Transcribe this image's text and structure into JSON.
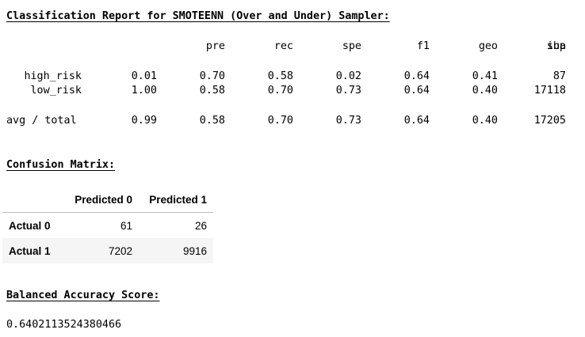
{
  "classification_report": {
    "title": "Classification Report for SMOTEENN (Over and Under) Sampler:",
    "columns": [
      "pre",
      "rec",
      "spe",
      "f1",
      "geo",
      "iba",
      "sup"
    ],
    "rows": [
      {
        "label": "high_risk",
        "values": [
          "0.01",
          "0.70",
          "0.58",
          "0.02",
          "0.64",
          "0.41",
          "87"
        ]
      },
      {
        "label": "low_risk",
        "values": [
          "1.00",
          "0.58",
          "0.70",
          "0.73",
          "0.64",
          "0.40",
          "17118"
        ]
      }
    ],
    "avg_total": {
      "label": "avg / total",
      "values": [
        "0.99",
        "0.58",
        "0.70",
        "0.73",
        "0.64",
        "0.40",
        "17205"
      ]
    }
  },
  "confusion_matrix": {
    "title": "Confusion Matrix:",
    "columns": [
      "Predicted 0",
      "Predicted 1"
    ],
    "rows": [
      {
        "label": "Actual 0",
        "values": [
          "61",
          "26"
        ]
      },
      {
        "label": "Actual 1",
        "values": [
          "7202",
          "9916"
        ]
      }
    ]
  },
  "balanced_accuracy": {
    "title": "Balanced Accuracy Score:",
    "value": "0.6402113524380466"
  }
}
